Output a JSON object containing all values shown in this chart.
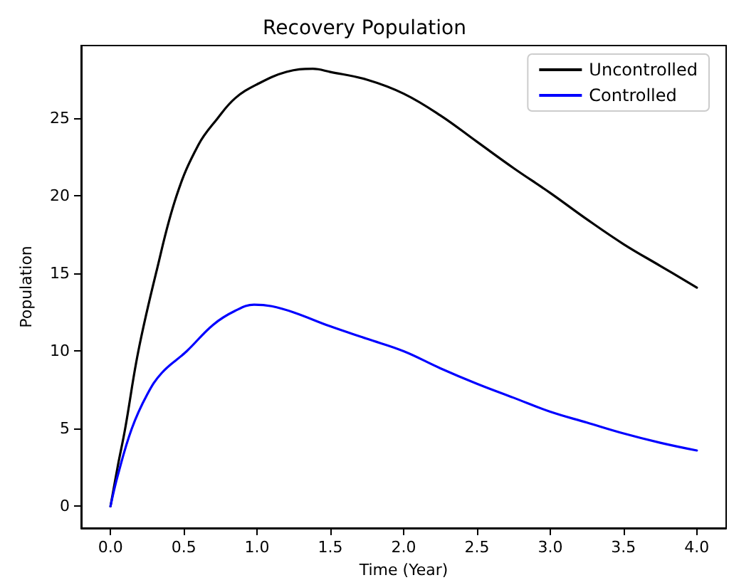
{
  "chart_data": {
    "type": "line",
    "title": "Recovery Population",
    "xlabel": "Time (Year)",
    "ylabel": "Population",
    "xlim": [
      -0.2,
      4.2
    ],
    "ylim": [
      -1.4,
      29.7
    ],
    "xticks": [
      {
        "value": 0,
        "label": "0.0"
      },
      0.5,
      {
        "value": 1,
        "label": "1.0"
      },
      1.5,
      {
        "value": 2,
        "label": "2.0"
      },
      2.5,
      {
        "value": 3,
        "label": "3.0"
      },
      3.5,
      {
        "value": 4,
        "label": "4.0"
      }
    ],
    "yticks": [
      0,
      5,
      10,
      15,
      20,
      25
    ],
    "grid": false,
    "legend": "top right",
    "marker": "none",
    "line_style": "solid",
    "series": [
      {
        "name": "Uncontrolled",
        "color": "#000000",
        "x": [
          0,
          0.05,
          0.1,
          0.19,
          0.31,
          0.45,
          0.6,
          0.73,
          0.85,
          1,
          1.2,
          1.38,
          1.5,
          1.75,
          2,
          2.25,
          2.5,
          2.75,
          3,
          3.25,
          3.5,
          3.75,
          4
        ],
        "values": [
          0,
          2.6,
          5,
          10,
          15,
          20,
          23.3,
          25,
          26.3,
          27.2,
          28,
          28.2,
          28,
          27.5,
          26.6,
          25.2,
          23.5,
          21.8,
          20.2,
          18.5,
          16.9,
          15.5,
          14.1
        ]
      },
      {
        "name": "Controlled",
        "color": "#0000ff",
        "x": [
          0,
          0.05,
          0.145,
          0.25,
          0.35,
          0.52,
          0.7,
          0.85,
          0.98,
          1.1,
          1.25,
          1.5,
          1.75,
          2,
          2.25,
          2.5,
          2.75,
          3,
          3.25,
          3.5,
          3.75,
          4
        ],
        "values": [
          0,
          2,
          5,
          7.2,
          8.6,
          10,
          11.7,
          12.6,
          13,
          12.9,
          12.5,
          11.6,
          10.8,
          10,
          8.9,
          7.9,
          7,
          6.1,
          5.4,
          4.7,
          4.1,
          3.6
        ]
      }
    ]
  }
}
